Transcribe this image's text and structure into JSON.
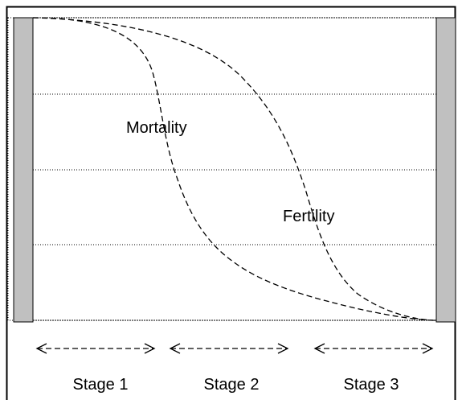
{
  "curves": {
    "mortality": "Mortality",
    "fertility": "Fertility"
  },
  "stages": [
    "Stage 1",
    "Stage 2",
    "Stage 3"
  ]
}
